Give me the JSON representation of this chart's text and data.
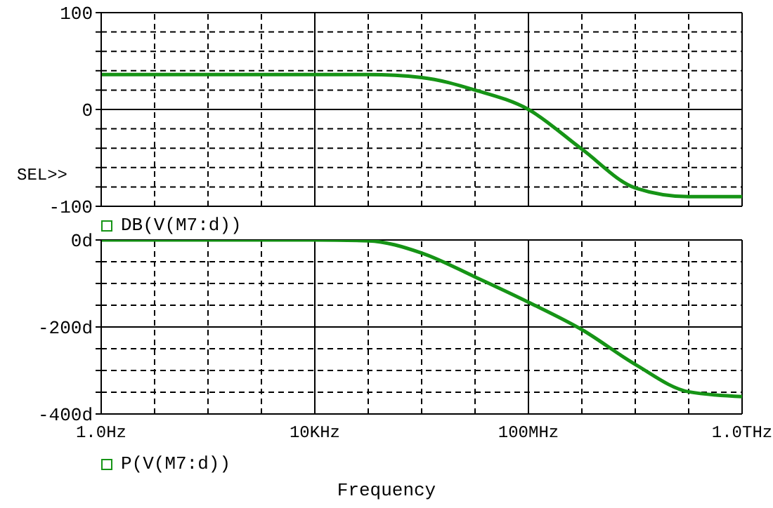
{
  "chart_data": [
    {
      "type": "line",
      "categories": [
        null,
        null,
        null,
        null,
        null,
        null,
        null,
        null,
        null,
        null,
        null,
        null,
        null
      ],
      "series": [
        {
          "name": "DB(V(M7:d))",
          "color": "#169416",
          "values": [
            36,
            36,
            36,
            36,
            36,
            36,
            33,
            20,
            0,
            -41,
            -81,
            -90,
            -90
          ]
        }
      ],
      "ylim": [
        -100,
        100
      ],
      "yticks": [
        -100,
        {
          "value": -80,
          "label": null
        },
        {
          "value": -60,
          "label": null
        },
        {
          "value": -40,
          "label": null
        },
        {
          "value": -20,
          "label": null
        },
        0,
        {
          "value": 20,
          "label": null
        },
        {
          "value": 40,
          "label": null
        },
        {
          "value": 60,
          "label": null
        },
        {
          "value": 80,
          "label": null
        },
        100
      ],
      "grid": true,
      "legend": "bottom left",
      "tick_labels": "y",
      "marker": "none",
      "line_style": "solid",
      "annotations": [
        "SEL>>"
      ]
    },
    {
      "type": "line",
      "categories": [
        "1.0Hz",
        null,
        null,
        null,
        "10KHz",
        null,
        null,
        null,
        "100MHz",
        null,
        null,
        null,
        "1.0THz"
      ],
      "series": [
        {
          "name": "P(V(M7:d))",
          "color": "#169416",
          "values": [
            0,
            0,
            0,
            0,
            0,
            -2,
            -30,
            -85,
            -143,
            -206,
            -286,
            -349,
            -360
          ]
        }
      ],
      "ylim": [
        -400,
        0
      ],
      "yticks": [
        {
          "value": -400,
          "label": "-400d"
        },
        {
          "value": -350,
          "label": null
        },
        {
          "value": -300,
          "label": null
        },
        {
          "value": -250,
          "label": null
        },
        {
          "value": -200,
          "label": "-200d"
        },
        {
          "value": -150,
          "label": null
        },
        {
          "value": -100,
          "label": null
        },
        {
          "value": -50,
          "label": null
        },
        {
          "value": 0,
          "label": "0d"
        }
      ],
      "grid": true,
      "legend": "bottom left",
      "marker": "none",
      "line_style": "solid",
      "xlabel": "Frequency"
    }
  ]
}
